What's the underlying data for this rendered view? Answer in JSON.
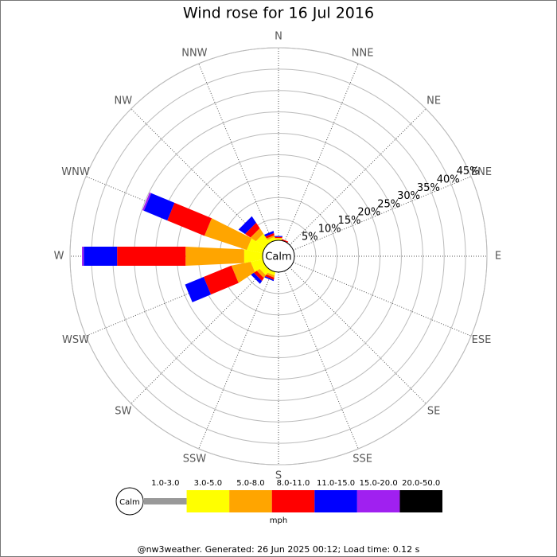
{
  "chart_data": {
    "type": "windrose",
    "title": "Wind rose for 16 Jul 2016",
    "categories": [
      "N",
      "NNE",
      "NE",
      "ENE",
      "E",
      "ESE",
      "SE",
      "SSE",
      "S",
      "SSW",
      "SW",
      "WSW",
      "W",
      "WNW",
      "NW",
      "NNW"
    ],
    "calm_label": "Calm",
    "rlim": [
      0,
      45
    ],
    "rticks": [
      {
        "value": 5,
        "label": "5%"
      },
      {
        "value": 10,
        "label": "10%"
      },
      {
        "value": 15,
        "label": "15%"
      },
      {
        "value": 20,
        "label": "20%"
      },
      {
        "value": 25,
        "label": "25%"
      },
      {
        "value": 30,
        "label": "30%"
      },
      {
        "value": 35,
        "label": "35%"
      },
      {
        "value": 40,
        "label": "40%"
      },
      {
        "value": 45,
        "label": "45%"
      }
    ],
    "series": [
      {
        "name": "1.0-3.0",
        "color": "#999999",
        "values": [
          0,
          0,
          0,
          0,
          0,
          0,
          0,
          0,
          0,
          0,
          0,
          0,
          0,
          0,
          0,
          0
        ]
      },
      {
        "name": "3.0-5.0",
        "color": "#ffff00",
        "values": [
          0.5,
          0,
          0,
          0,
          0,
          0,
          0,
          0,
          0,
          0.8,
          1.5,
          2.8,
          4.3,
          3.7,
          2.5,
          0.8
        ]
      },
      {
        "name": "5.0-8.0",
        "color": "#ffa500",
        "values": [
          0,
          0,
          0,
          0,
          0,
          0,
          0,
          0,
          0,
          0.5,
          0.8,
          4.5,
          13.7,
          10.4,
          1.5,
          0.4
        ]
      },
      {
        "name": "8.0-11.0",
        "color": "#ff0000",
        "values": [
          0.3,
          0.3,
          0,
          0,
          0,
          0,
          0,
          0,
          0,
          0.5,
          0.8,
          7,
          16,
          9.4,
          1.5,
          0.5
        ]
      },
      {
        "name": "11.0-15.0",
        "color": "#0000ff",
        "values": [
          0.2,
          0,
          0,
          0,
          0,
          0,
          0,
          0,
          0,
          0.3,
          0.8,
          4.7,
          7.8,
          5.9,
          1.8,
          0.5
        ]
      },
      {
        "name": "15.0-20.0",
        "color": "#a020f0",
        "values": [
          0,
          0,
          0,
          0,
          0,
          0,
          0,
          0,
          0,
          0,
          0,
          0,
          0.4,
          0.4,
          0,
          0
        ]
      },
      {
        "name": "20.0-50.0",
        "color": "#000000",
        "values": [
          0,
          0,
          0,
          0,
          0,
          0,
          0,
          0,
          0,
          0,
          0,
          0,
          0,
          0,
          0,
          0
        ]
      }
    ],
    "unit": "mph",
    "footer": "@nw3weather. Generated: 26 Jun 2025 00:12; Load time: 0.12 s"
  }
}
